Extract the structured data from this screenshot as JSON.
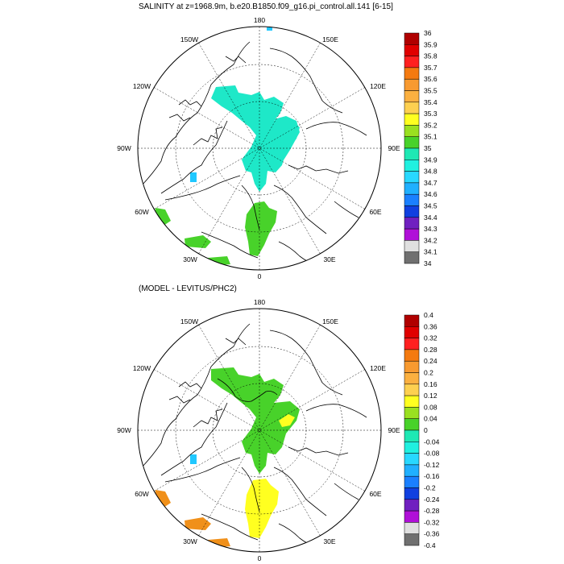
{
  "panels": [
    {
      "title": "SALINITY at z=1968.9m, b.e20.B1850.f09_g16.pi_control.all.141 [6-15]",
      "colorbar_labels": [
        "36",
        "35.9",
        "35.8",
        "35.7",
        "35.6",
        "35.5",
        "35.4",
        "35.3",
        "35.2",
        "35.1",
        "35",
        "34.9",
        "34.8",
        "34.7",
        "34.6",
        "34.5",
        "34.4",
        "34.3",
        "34.2",
        "34.1",
        "34"
      ]
    },
    {
      "title": "(MODEL - LEVITUS/PHC2)",
      "colorbar_labels": [
        "0.4",
        "0.36",
        "0.32",
        "0.28",
        "0.24",
        "0.2",
        "0.16",
        "0.12",
        "0.08",
        "0.04",
        "0",
        "-0.04",
        "-0.08",
        "-0.12",
        "-0.16",
        "-0.2",
        "-0.24",
        "-0.28",
        "-0.32",
        "-0.36",
        "-0.4"
      ]
    }
  ],
  "map_labels": {
    "lon_180": "180",
    "lon_150w": "150W",
    "lon_150e": "150E",
    "lon_120w": "120W",
    "lon_120e": "120E",
    "lon_90w": "90W",
    "lon_90e": "90E",
    "lon_60w": "60W",
    "lon_60e": "60E",
    "lon_30w": "30W",
    "lon_30e": "30E",
    "lon_0": "0"
  },
  "colors": {
    "colorbar_top_to_bottom": [
      "#b00000",
      "#e00000",
      "#ff2020",
      "#f47a10",
      "#f89a30",
      "#fbb040",
      "#fdd050",
      "#ffff20",
      "#9ae020",
      "#48d22a",
      "#1ee8b4",
      "#20f0e0",
      "#28d8ff",
      "#20b0ff",
      "#1a80ff",
      "#1040e0",
      "#7020c0",
      "#b010d8",
      "#e0e0e0",
      "#707070"
    ],
    "salinity_field": "#1ee8c8",
    "salinity_atlantic": "#48d22a",
    "diff_arctic": "#48d22a",
    "diff_atlantic": "#ffff20",
    "diff_orange": "#f0901a",
    "blue_patch": "#20c8ff"
  }
}
